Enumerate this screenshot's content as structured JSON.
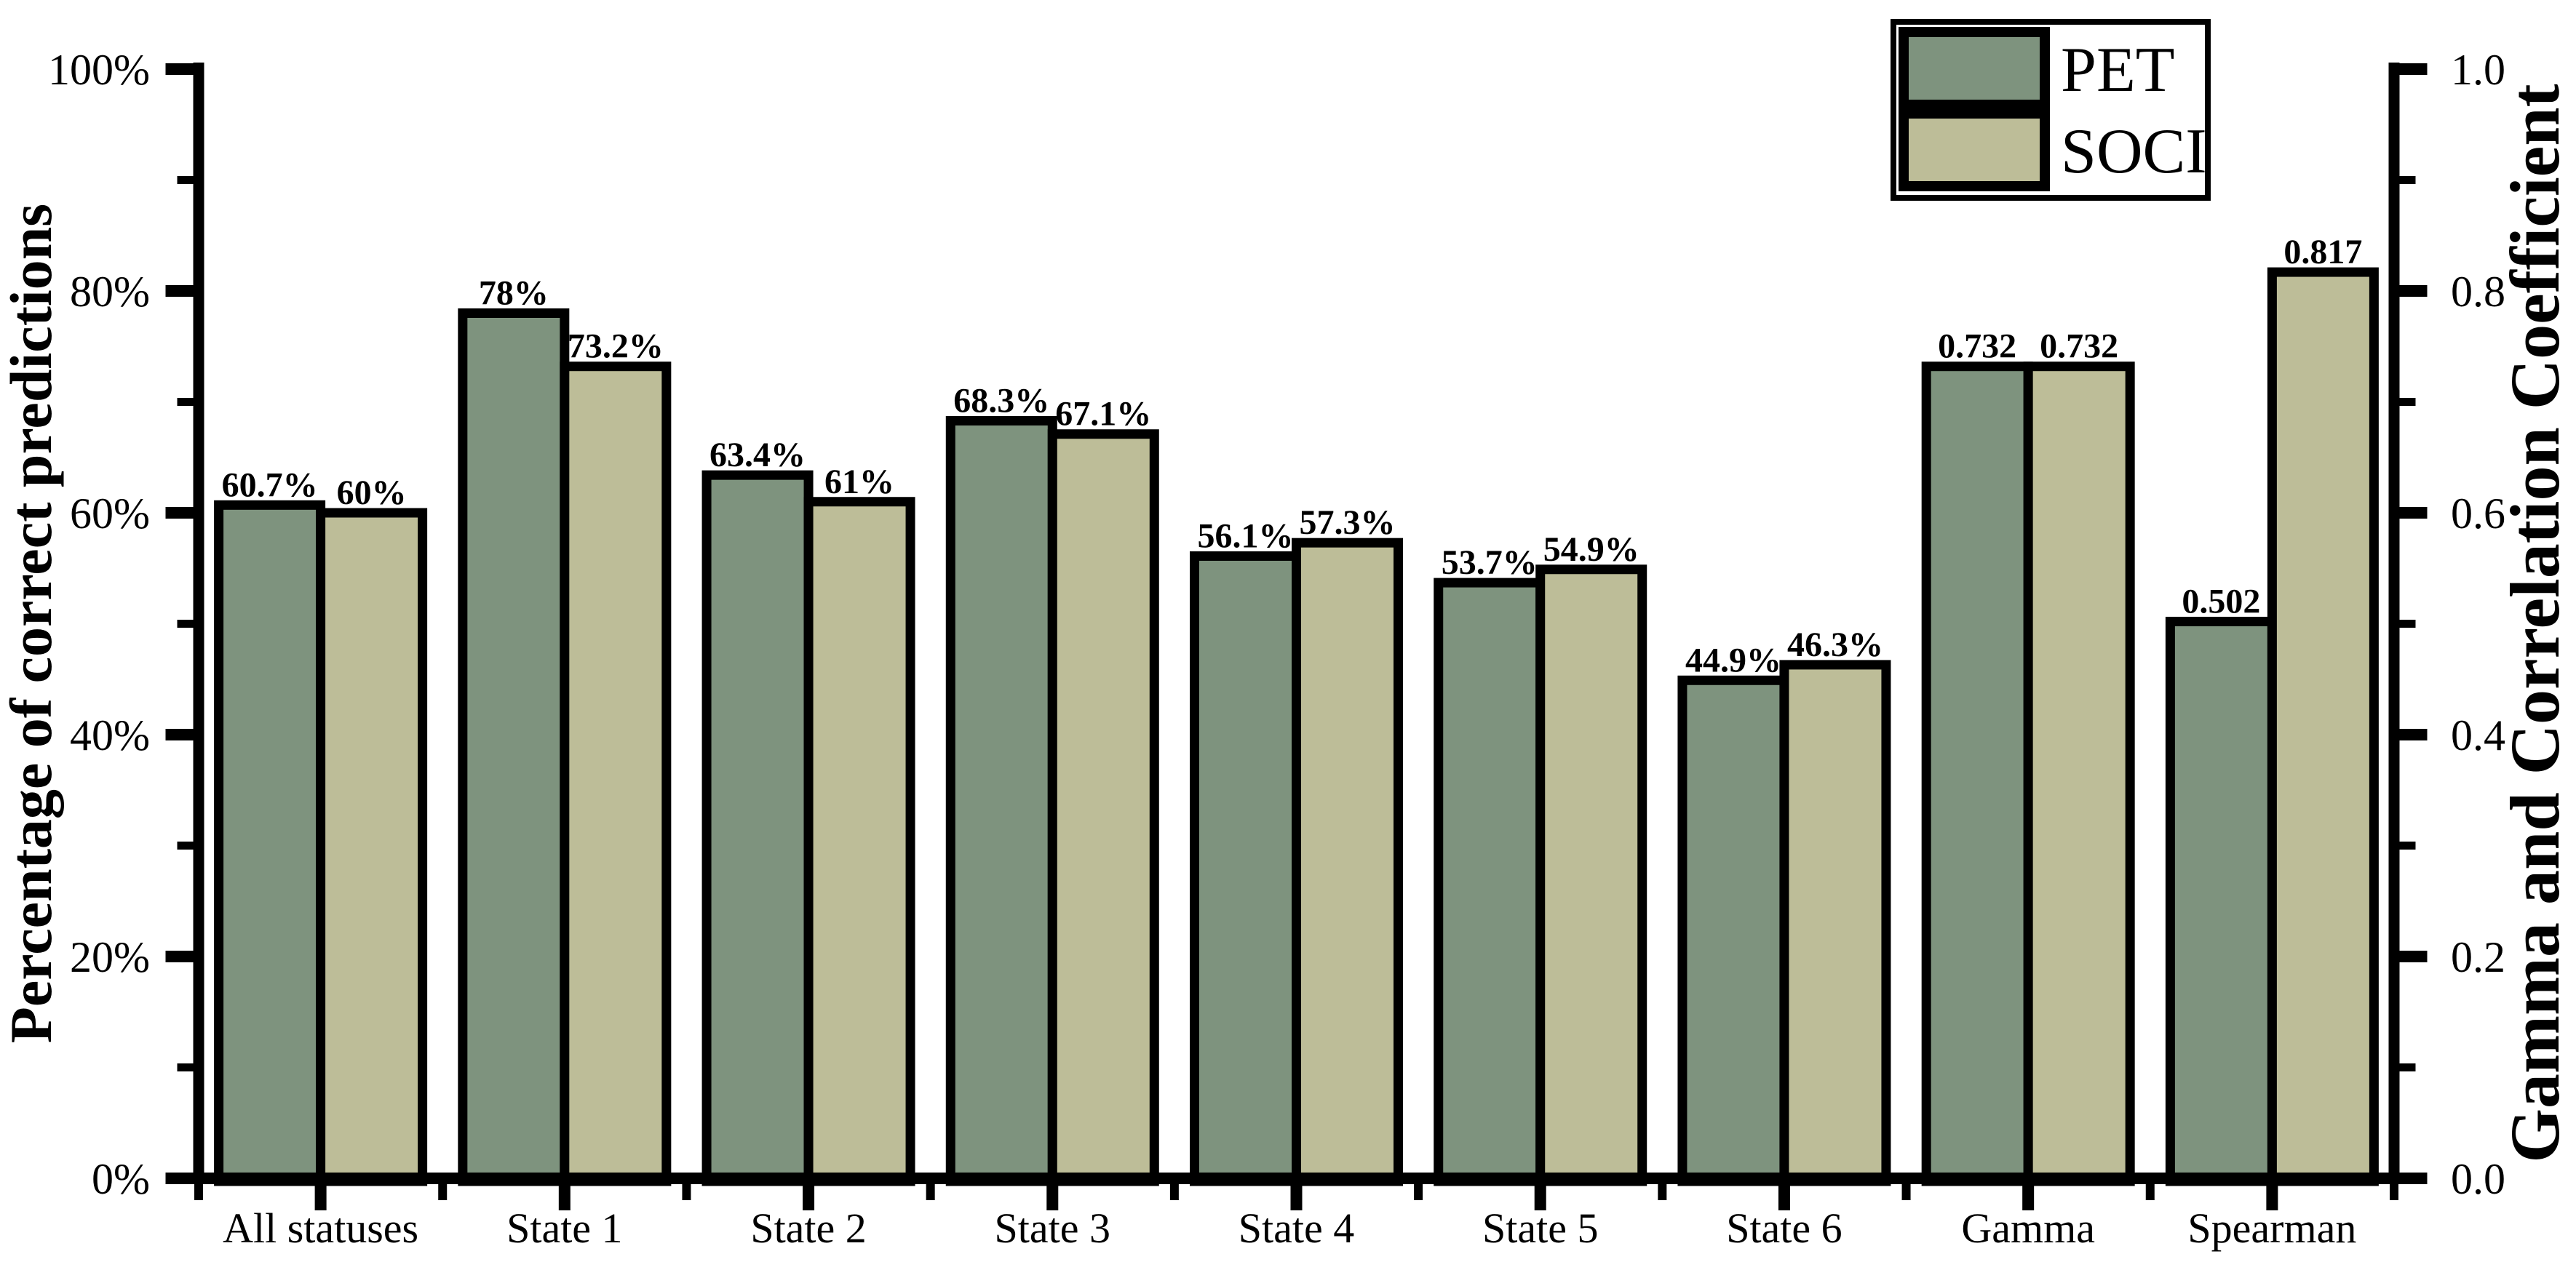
{
  "figure": {
    "background": "#ffffff"
  },
  "chart_data": {
    "type": "bar",
    "title": "",
    "categories": [
      "All statuses",
      "State 1",
      "State 2",
      "State 3",
      "State 4",
      "State 5",
      "State 6",
      "Gamma",
      "Spearman"
    ],
    "series": [
      {
        "name": "PET",
        "color": "#7e937e",
        "values": [
          60.7,
          78,
          63.4,
          68.3,
          56.1,
          53.7,
          44.9,
          0.732,
          0.502
        ],
        "labels": [
          "60.7%",
          "78%",
          "63.4%",
          "68.3%",
          "56.1%",
          "53.7%",
          "44.9%",
          "0.732",
          "0.502"
        ]
      },
      {
        "name": "SOCI",
        "color": "#bdbd98",
        "values": [
          60,
          73.2,
          61,
          67.1,
          57.3,
          54.9,
          46.3,
          0.732,
          0.817
        ],
        "labels": [
          "60%",
          "73.2%",
          "61%",
          "67.1%",
          "57.3%",
          "54.9%",
          "46.3%",
          "0.732",
          "0.817"
        ]
      }
    ],
    "right_axis_categories": [
      "Gamma",
      "Spearman"
    ],
    "left_axis": {
      "title": "Percentage of correct predictions",
      "tick_labels": [
        "0%",
        "20%",
        "40%",
        "60%",
        "80%",
        "100%"
      ],
      "tick_values": [
        0,
        20,
        40,
        60,
        80,
        100
      ],
      "minor_tick_values": [
        10,
        30,
        50,
        70,
        90
      ],
      "range": [
        0,
        100
      ]
    },
    "right_axis": {
      "title": "Gamma  and Correlation Coefficient",
      "tick_labels": [
        "0.0",
        "0.2",
        "0.4",
        "0.6",
        "0.8",
        "1.0"
      ],
      "tick_values": [
        0,
        0.2,
        0.4,
        0.6,
        0.8,
        1.0
      ],
      "minor_tick_values": [
        0.1,
        0.3,
        0.5,
        0.7,
        0.9
      ],
      "range": [
        0,
        1.0
      ]
    },
    "legend": {
      "position": "top-right",
      "entries": [
        "PET",
        "SOCI"
      ]
    },
    "grid": false,
    "styles": {
      "bar_border_color": "#000000",
      "axis_color": "#000000",
      "value_label_color": "#000000"
    }
  }
}
